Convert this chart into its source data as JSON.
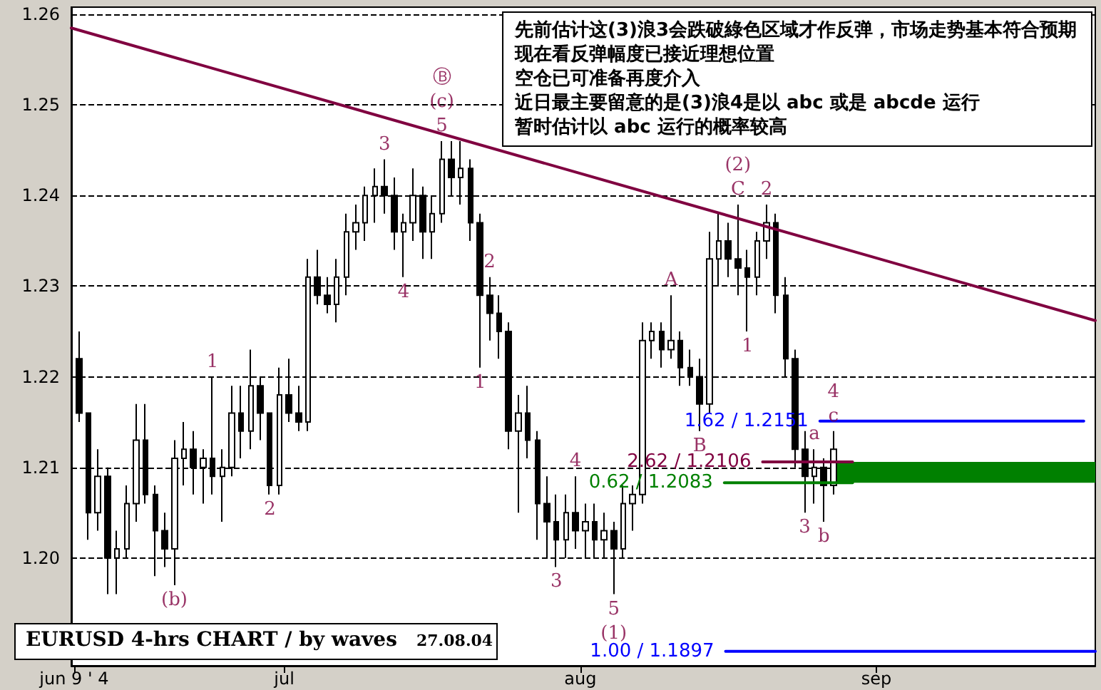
{
  "chart_data": {
    "type": "candlestick",
    "title": "EURUSD 4-hrs CHART / by waves",
    "subtitle": "27.08.04",
    "annotations": [
      "先前估计这(3)浪3会跌破綠色区域才作反弹，市场走势基本符合预期",
      "现在看反弹幅度已接近理想位置",
      "空仓已可准备再度介入",
      "近日最主要留意的是(3)浪4是以 abc 或是 abcde 运行",
      "暂时估计以 abc 运行的概率较高",
      {
        "text": "1",
        "x": "--06-23T12:00",
        "y": 1.22
      },
      {
        "text": "2",
        "x": "--06-29T12:00",
        "y": 1.207
      },
      {
        "text": "3",
        "x": "--07-11T12:00",
        "y": 1.244
      },
      {
        "text": "4",
        "x": "--07-13T12:00",
        "y": 1.231
      },
      {
        "text": "5",
        "x": "--07-17T12:00",
        "y": 1.246
      },
      {
        "text": "2",
        "x": "--07-22T12:00",
        "y": 1.231
      },
      {
        "text": "1",
        "x": "--07-21T12:00",
        "y": 1.221
      },
      {
        "text": "4",
        "x": "--07-31T12:00",
        "y": 1.209
      },
      {
        "text": "3",
        "x": "--07-29T12:00",
        "y": 1.199
      },
      {
        "text": "5",
        "x": "--08-04T12:00",
        "y": 1.196
      },
      {
        "text": "A",
        "x": "--08-10T12:00",
        "y": 1.229
      },
      {
        "text": "B",
        "x": "--08-13T12:00",
        "y": 1.214
      },
      {
        "text": "C",
        "x": "--08-17T12:00",
        "y": 1.239
      },
      {
        "text": "1",
        "x": "--08-18T12:00",
        "y": 1.225
      },
      {
        "text": "2",
        "x": "--08-20T12:00",
        "y": 1.239
      },
      {
        "text": "3",
        "x": "--08-24T12:00",
        "y": 1.205
      },
      {
        "text": "(b)",
        "x": "--06-19T12:00",
        "y": 1.197
      },
      {
        "text": "(c)",
        "x": "--07-17T12:00",
        "y": 1.246
      },
      {
        "text": "(1)",
        "x": "--08-04T12:00",
        "y": 1.196
      },
      {
        "text": "(2)",
        "x": "--08-17T12:00",
        "y": 1.239
      },
      {
        "text": "a",
        "x": "--08-25T12:00",
        "y": 1.212
      },
      {
        "text": "b",
        "x": "--08-26T12:00",
        "y": 1.204
      },
      {
        "text": "c",
        "x": "--08-27T12:00",
        "y": 1.214
      },
      {
        "text": "4",
        "x": "--08-27T12:00",
        "y": 1.214
      },
      {
        "text": "Ⓑ",
        "x": "--07-17T12:00",
        "y": 1.246
      }
    ],
    "color": "#000000",
    "x": [
      "--06-09T12:00",
      "--06-10T12:00",
      "--06-11T12:00",
      "--06-12T12:00",
      "--06-13T12:00",
      "--06-14T12:00",
      "--06-15T12:00",
      "--06-16T12:00",
      "--06-17T12:00",
      "--06-18T12:00",
      "--06-19T12:00",
      "--06-20T12:00",
      "--06-21T12:00",
      "--06-22T12:00",
      "--06-23T12:00",
      "--06-24T12:00",
      "--06-25T12:00",
      "--06-26T12:00",
      "--06-27T12:00",
      "--06-28T12:00",
      "--06-29T12:00",
      "--06-30T12:00",
      "--07-01T12:00",
      "--07-02T12:00",
      "--07-03T12:00",
      "--07-04T12:00",
      "--07-05T12:00",
      "--07-06T12:00",
      "--07-07T12:00",
      "--07-08T12:00",
      "--07-09T12:00",
      "--07-10T12:00",
      "--07-11T12:00",
      "--07-12T12:00",
      "--07-13T12:00",
      "--07-14T12:00",
      "--07-15T12:00",
      "--07-16T12:00",
      "--07-17T12:00",
      "--07-18T12:00",
      "--07-19T12:00",
      "--07-20T12:00",
      "--07-21T12:00",
      "--07-22T12:00",
      "--07-23T12:00",
      "--07-24T12:00",
      "--07-25T12:00",
      "--07-26T12:00",
      "--07-27T12:00",
      "--07-28T12:00",
      "--07-29T12:00",
      "--07-30T12:00",
      "--07-31T12:00",
      "--08-01T12:00",
      "--08-02T12:00",
      "--08-03T12:00",
      "--08-04T12:00",
      "--08-05T12:00",
      "--08-06T12:00",
      "--08-07T12:00",
      "--08-08T12:00",
      "--08-09T12:00",
      "--08-10T12:00",
      "--08-11T12:00",
      "--08-12T12:00",
      "--08-13T12:00",
      "--08-14T12:00",
      "--08-15T12:00",
      "--08-16T12:00",
      "--08-17T12:00",
      "--08-18T12:00",
      "--08-19T12:00",
      "--08-20T12:00",
      "--08-21T12:00",
      "--08-22T12:00",
      "--08-23T12:00",
      "--08-24T12:00",
      "--08-25T12:00",
      "--08-26T12:00",
      "--08-27T12:00"
    ],
    "ohlc": [
      [
        1.222,
        1.225,
        1.215,
        1.216
      ],
      [
        1.216,
        1.216,
        1.202,
        1.205
      ],
      [
        1.205,
        1.212,
        1.203,
        1.209
      ],
      [
        1.209,
        1.21,
        1.196,
        1.2
      ],
      [
        1.2,
        1.203,
        1.196,
        1.201
      ],
      [
        1.201,
        1.208,
        1.2,
        1.206
      ],
      [
        1.206,
        1.217,
        1.204,
        1.213
      ],
      [
        1.213,
        1.217,
        1.206,
        1.207
      ],
      [
        1.207,
        1.208,
        1.198,
        1.203
      ],
      [
        1.203,
        1.205,
        1.199,
        1.201
      ],
      [
        1.201,
        1.213,
        1.197,
        1.211
      ],
      [
        1.211,
        1.215,
        1.208,
        1.212
      ],
      [
        1.212,
        1.214,
        1.207,
        1.21
      ],
      [
        1.21,
        1.212,
        1.206,
        1.211
      ],
      [
        1.211,
        1.22,
        1.207,
        1.209
      ],
      [
        1.209,
        1.212,
        1.204,
        1.21
      ],
      [
        1.21,
        1.219,
        1.209,
        1.216
      ],
      [
        1.216,
        1.219,
        1.211,
        1.214
      ],
      [
        1.214,
        1.223,
        1.212,
        1.219
      ],
      [
        1.219,
        1.22,
        1.213,
        1.216
      ],
      [
        1.216,
        1.216,
        1.207,
        1.208
      ],
      [
        1.208,
        1.221,
        1.207,
        1.218
      ],
      [
        1.218,
        1.222,
        1.215,
        1.216
      ],
      [
        1.216,
        1.219,
        1.214,
        1.215
      ],
      [
        1.215,
        1.233,
        1.214,
        1.231
      ],
      [
        1.231,
        1.234,
        1.228,
        1.229
      ],
      [
        1.229,
        1.231,
        1.227,
        1.228
      ],
      [
        1.228,
        1.233,
        1.226,
        1.231
      ],
      [
        1.231,
        1.238,
        1.229,
        1.236
      ],
      [
        1.236,
        1.239,
        1.234,
        1.237
      ],
      [
        1.237,
        1.241,
        1.235,
        1.24
      ],
      [
        1.24,
        1.243,
        1.237,
        1.241
      ],
      [
        1.241,
        1.244,
        1.238,
        1.24
      ],
      [
        1.24,
        1.242,
        1.234,
        1.236
      ],
      [
        1.236,
        1.238,
        1.231,
        1.237
      ],
      [
        1.237,
        1.243,
        1.235,
        1.24
      ],
      [
        1.24,
        1.241,
        1.233,
        1.236
      ],
      [
        1.236,
        1.24,
        1.233,
        1.238
      ],
      [
        1.238,
        1.246,
        1.237,
        1.244
      ],
      [
        1.244,
        1.246,
        1.24,
        1.242
      ],
      [
        1.242,
        1.246,
        1.239,
        1.243
      ],
      [
        1.243,
        1.244,
        1.235,
        1.237
      ],
      [
        1.237,
        1.238,
        1.221,
        1.229
      ],
      [
        1.229,
        1.231,
        1.224,
        1.227
      ],
      [
        1.227,
        1.229,
        1.222,
        1.225
      ],
      [
        1.225,
        1.226,
        1.212,
        1.214
      ],
      [
        1.214,
        1.218,
        1.205,
        1.216
      ],
      [
        1.216,
        1.219,
        1.211,
        1.213
      ],
      [
        1.213,
        1.214,
        1.202,
        1.206
      ],
      [
        1.206,
        1.209,
        1.2,
        1.204
      ],
      [
        1.204,
        1.207,
        1.199,
        1.202
      ],
      [
        1.202,
        1.207,
        1.2,
        1.205
      ],
      [
        1.205,
        1.209,
        1.201,
        1.203
      ],
      [
        1.203,
        1.206,
        1.2,
        1.204
      ],
      [
        1.204,
        1.206,
        1.2,
        1.202
      ],
      [
        1.202,
        1.205,
        1.2,
        1.203
      ],
      [
        1.203,
        1.204,
        1.196,
        1.201
      ],
      [
        1.201,
        1.208,
        1.2,
        1.206
      ],
      [
        1.206,
        1.208,
        1.203,
        1.207
      ],
      [
        1.207,
        1.226,
        1.206,
        1.224
      ],
      [
        1.224,
        1.226,
        1.222,
        1.225
      ],
      [
        1.225,
        1.226,
        1.221,
        1.223
      ],
      [
        1.223,
        1.229,
        1.222,
        1.224
      ],
      [
        1.224,
        1.225,
        1.219,
        1.221
      ],
      [
        1.221,
        1.223,
        1.219,
        1.22
      ],
      [
        1.22,
        1.222,
        1.214,
        1.217
      ],
      [
        1.217,
        1.236,
        1.216,
        1.233
      ],
      [
        1.233,
        1.238,
        1.23,
        1.235
      ],
      [
        1.235,
        1.237,
        1.231,
        1.233
      ],
      [
        1.233,
        1.239,
        1.229,
        1.232
      ],
      [
        1.232,
        1.234,
        1.225,
        1.231
      ],
      [
        1.231,
        1.236,
        1.229,
        1.235
      ],
      [
        1.235,
        1.239,
        1.233,
        1.237
      ],
      [
        1.237,
        1.238,
        1.227,
        1.229
      ],
      [
        1.229,
        1.231,
        1.22,
        1.222
      ],
      [
        1.222,
        1.223,
        1.21,
        1.212
      ],
      [
        1.212,
        1.214,
        1.205,
        1.209
      ],
      [
        1.209,
        1.212,
        1.206,
        1.21
      ],
      [
        1.21,
        1.211,
        1.204,
        1.208
      ],
      [
        1.208,
        1.214,
        1.207,
        1.212
      ]
    ],
    "series": [
      {
        "type": "line",
        "color": "#800040",
        "x": [
          "--06-08T17:00",
          "--09-23T22:00"
        ],
        "values": [
          1.2585,
          1.2262
        ]
      },
      {
        "type": "line",
        "name": "1.62 / 1.2151",
        "color": "#0000ff",
        "x": [
          "--08-26T02:00",
          "--09-22T17:00"
        ],
        "values": [
          1.2151,
          1.2151
        ]
      },
      {
        "type": "line",
        "name": "2.62 / 1.2106",
        "color": "#800040",
        "x": [
          "--08-20T02:00",
          "--08-29T12:00"
        ],
        "values": [
          1.2106,
          1.2106
        ]
      },
      {
        "type": "line",
        "name": "0.62 / 1.2083",
        "color": "#008000",
        "x": [
          "--08-16T02:00",
          "--08-29T12:00"
        ],
        "values": [
          1.2083,
          1.2083
        ]
      },
      {
        "type": "line",
        "name": "1.00 / 1.1897",
        "color": "#0000ff",
        "x": [
          "--08-16T05:00",
          "--09-23T22:00"
        ],
        "values": [
          1.1897,
          1.1897
        ]
      }
    ],
    "bands": [
      {
        "axis": "y",
        "from": 1.2083,
        "to": 1.2106,
        "color": "#008000"
      }
    ],
    "xlim": [
      "--06-08T17:00",
      "--09-23T22:00"
    ],
    "xticks": [
      {
        "value": "--06-09",
        "label": "jun 9 ' 4"
      },
      {
        "value": "--07-01",
        "label": "jul"
      },
      {
        "value": "--08-01",
        "label": "aug"
      },
      {
        "value": "--09-01",
        "label": "sep"
      }
    ],
    "ylim": [
      1.1881,
      1.2608
    ],
    "yticks": [
      {
        "value": 1.2,
        "label": "1.20"
      },
      {
        "value": 1.21,
        "label": "1.21"
      },
      {
        "value": 1.22,
        "label": "1.22"
      },
      {
        "value": 1.23,
        "label": "1.23"
      },
      {
        "value": 1.24,
        "label": "1.24"
      },
      {
        "value": 1.25,
        "label": "1.25"
      },
      {
        "value": 1.26,
        "label": "1.26"
      }
    ],
    "grid": "y"
  }
}
